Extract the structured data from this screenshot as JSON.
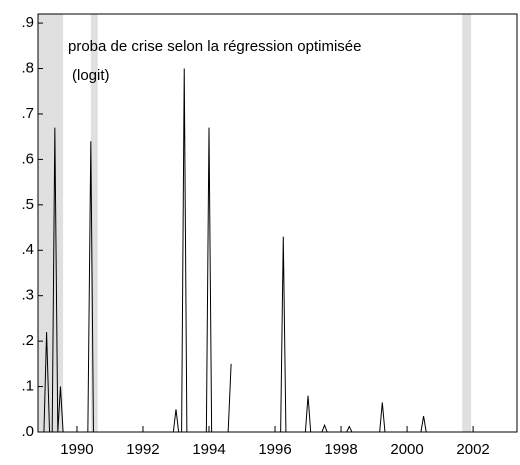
{
  "chart_data": {
    "type": "line",
    "annotations": [
      "proba de crise selon la régression optimisée",
      "(logit)"
    ],
    "shaded_periods": [
      [
        1988.82,
        1989.58
      ],
      [
        1990.42,
        1990.63
      ],
      [
        2001.67,
        2001.94
      ]
    ],
    "shade_color": "#e0e0e0",
    "series": [
      {
        "name": "proba",
        "color": "#000000",
        "x": [
          1988.92,
          1989.0,
          1989.08,
          1989.17,
          1989.25,
          1989.33,
          1989.42,
          1989.5,
          1989.58,
          1990.33,
          1990.42,
          1990.5,
          1992.92,
          1993.0,
          1993.08,
          1993.17,
          1993.25,
          1993.33,
          1993.92,
          1994.0,
          1994.08,
          1994.58,
          1994.67,
          1994.75,
          1995.83,
          1996.17,
          1996.25,
          1996.33,
          1996.92,
          1997.0,
          1997.08,
          1997.42,
          1997.5,
          1997.58,
          1998.17,
          1998.25,
          1998.33,
          1999.17,
          1999.25,
          1999.33,
          2000.42,
          2000.5,
          2000.58,
          2003.33
        ],
        "values": [
          0,
          0,
          0.22,
          0,
          0,
          0.67,
          0,
          0.1,
          0,
          0,
          0.64,
          0,
          0,
          0.05,
          0,
          0,
          0.8,
          0,
          0,
          0.67,
          0,
          0,
          0.15,
          null,
          0,
          0,
          0.43,
          0,
          0,
          0.08,
          0,
          0,
          0.015,
          0,
          0,
          0.012,
          0,
          0,
          0.065,
          0,
          0,
          0.035,
          0,
          0
        ]
      }
    ],
    "xlim": [
      1988.82,
      2003.33
    ],
    "xticks": [
      1990,
      1992,
      1994,
      1996,
      1998,
      2000,
      2002
    ],
    "ylim": [
      0,
      0.92
    ],
    "yticks": [
      {
        "value": 0,
        "label": ".0"
      },
      {
        "value": 0.1,
        "label": ".1"
      },
      {
        "value": 0.2,
        "label": ".2"
      },
      {
        "value": 0.3,
        "label": ".3"
      },
      {
        "value": 0.4,
        "label": ".4"
      },
      {
        "value": 0.5,
        "label": ".5"
      },
      {
        "value": 0.6,
        "label": ".6"
      },
      {
        "value": 0.7,
        "label": ".7"
      },
      {
        "value": 0.8,
        "label": ".8"
      },
      {
        "value": 0.9,
        "label": ".9"
      }
    ]
  }
}
